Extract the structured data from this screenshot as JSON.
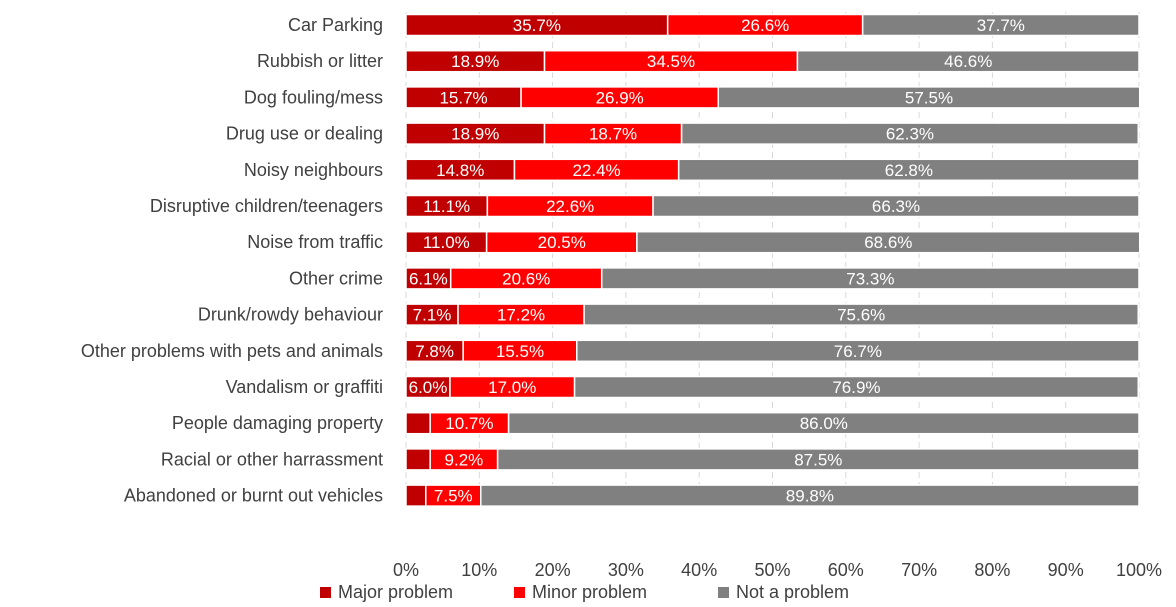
{
  "chart_data": {
    "type": "bar",
    "orientation": "horizontal",
    "stacked": "percent",
    "categories": [
      "Car Parking",
      "Rubbish or litter",
      "Dog fouling/mess",
      "Drug use or dealing",
      "Noisy neighbours",
      "Disruptive children/teenagers",
      "Noise from traffic",
      "Other crime",
      "Drunk/rowdy behaviour",
      "Other problems with pets and animals",
      "Vandalism or graffiti",
      "People damaging property",
      "Racial or other harrassment",
      "Abandoned or burnt out vehicles"
    ],
    "series": [
      {
        "name": "Major problem",
        "color": "#c00000",
        "values": [
          35.7,
          18.9,
          15.7,
          18.9,
          14.8,
          11.1,
          11.0,
          6.1,
          7.1,
          7.8,
          6.0,
          3.3,
          3.3,
          2.7
        ],
        "labels": [
          "35.7%",
          "18.9%",
          "15.7%",
          "18.9%",
          "14.8%",
          "11.1%",
          "11.0%",
          "6.1%",
          "7.1%",
          "7.8%",
          "6.0%",
          "",
          "",
          ""
        ]
      },
      {
        "name": "Minor problem",
        "color": "#ff0000",
        "values": [
          26.6,
          34.5,
          26.9,
          18.7,
          22.4,
          22.6,
          20.5,
          20.6,
          17.2,
          15.5,
          17.0,
          10.7,
          9.2,
          7.5
        ],
        "labels": [
          "26.6%",
          "34.5%",
          "26.9%",
          "18.7%",
          "22.4%",
          "22.6%",
          "20.5%",
          "20.6%",
          "17.2%",
          "15.5%",
          "17.0%",
          "10.7%",
          "9.2%",
          "7.5%"
        ]
      },
      {
        "name": "Not a problem",
        "color": "#808080",
        "values": [
          37.7,
          46.6,
          57.5,
          62.3,
          62.8,
          66.3,
          68.6,
          73.3,
          75.6,
          76.7,
          76.9,
          86.0,
          87.5,
          89.8
        ],
        "labels": [
          "37.7%",
          "46.6%",
          "57.5%",
          "62.3%",
          "62.8%",
          "66.3%",
          "68.6%",
          "73.3%",
          "75.6%",
          "76.7%",
          "76.9%",
          "86.0%",
          "87.5%",
          "89.8%"
        ]
      }
    ],
    "xlim": [
      0,
      100
    ],
    "xticks": [
      "0%",
      "10%",
      "20%",
      "30%",
      "40%",
      "50%",
      "60%",
      "70%",
      "80%",
      "90%",
      "100%"
    ],
    "grid": true,
    "legend": "bottom",
    "title": "",
    "xlabel": "",
    "ylabel": ""
  }
}
